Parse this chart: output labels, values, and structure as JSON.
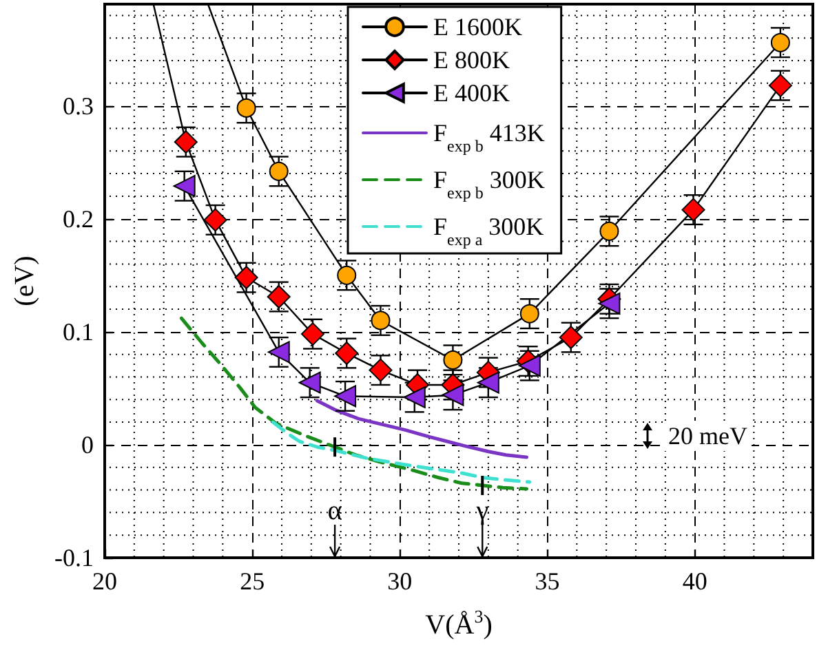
{
  "chart_data": {
    "type": "line",
    "xlabel": "V(Å$^{3}$)",
    "ylabel": "(eV)",
    "xlim": [
      20,
      44
    ],
    "ylim": [
      -0.1,
      0.39
    ],
    "xticks": [
      20,
      25,
      30,
      35,
      40
    ],
    "yticks": [
      -0.1,
      0,
      0.1,
      0.2,
      0.3
    ],
    "grid": true,
    "legend": "top",
    "series": [
      {
        "name": "E 1600K",
        "color": "#ffa500",
        "marker": "circle",
        "line_style": "solid",
        "x": [
          24.8,
          25.9,
          28.2,
          29.35,
          31.8,
          34.4,
          37.1,
          42.9
        ],
        "values": [
          0.298,
          0.242,
          0.15,
          0.11,
          0.075,
          0.116,
          0.189,
          0.356
        ],
        "errors": [
          0.013,
          0.013,
          0.013,
          0.013,
          0.013,
          0.013,
          0.013,
          0.013
        ]
      },
      {
        "name": "E 800K",
        "color": "#ff0000",
        "marker": "diamond",
        "line_style": "solid",
        "x": [
          22.75,
          23.75,
          24.8,
          25.9,
          27.05,
          28.2,
          29.35,
          30.6,
          31.8,
          33.0,
          34.35,
          35.8,
          37.1,
          39.95,
          42.9
        ],
        "values": [
          0.268,
          0.199,
          0.148,
          0.131,
          0.098,
          0.081,
          0.066,
          0.053,
          0.053,
          0.064,
          0.074,
          0.095,
          0.129,
          0.208,
          0.318
        ],
        "errors": [
          0.013,
          0.013,
          0.013,
          0.013,
          0.013,
          0.013,
          0.013,
          0.013,
          0.013,
          0.013,
          0.013,
          0.013,
          0.013,
          0.013,
          0.013
        ]
      },
      {
        "name": "E 400K",
        "color": "#8a2be2",
        "marker": "triangle",
        "line_style": "solid",
        "x": [
          22.7,
          25.9,
          26.95,
          28.15,
          30.5,
          31.8,
          33.0,
          34.4,
          37.1
        ],
        "values": [
          0.229,
          0.082,
          0.055,
          0.043,
          0.042,
          0.044,
          0.055,
          0.07,
          0.125
        ],
        "errors": [
          0.013,
          0.013,
          0.013,
          0.013,
          0.013,
          0.013,
          0.013,
          0.013,
          0.013
        ]
      },
      {
        "name": "F$_{exp b}$ 413K",
        "color": "#7b35c4",
        "marker": "none",
        "line_style": "solid",
        "x": [
          27.2,
          27.8,
          28.6,
          29.4,
          30.2,
          31.0,
          31.6,
          32.2,
          33.0,
          33.6,
          34.3
        ],
        "values": [
          0.039,
          0.031,
          0.023,
          0.018,
          0.013,
          0.007,
          0.003,
          -0.001,
          -0.006,
          -0.009,
          -0.011
        ]
      },
      {
        "name": "F$_{exp b}$ 300K",
        "color": "#1a8c1a",
        "marker": "none",
        "line_style": "dashed",
        "x": [
          22.6,
          23.3,
          24.0,
          24.6,
          25.1,
          25.8,
          26.8,
          27.8,
          28.5,
          29.3,
          30.5,
          31.3,
          32.1,
          32.8,
          33.5,
          34.3
        ],
        "values": [
          0.112,
          0.09,
          0.069,
          0.05,
          0.033,
          0.019,
          0.008,
          -0.002,
          -0.009,
          -0.015,
          -0.023,
          -0.029,
          -0.034,
          -0.036,
          -0.038,
          -0.039
        ]
      },
      {
        "name": "F$_{exp a}$ 300K",
        "color": "#40e0d0",
        "marker": "none",
        "line_style": "dashed",
        "x": [
          25.7,
          26.2,
          26.6,
          27.2,
          27.8,
          28.9,
          30.5,
          31.3,
          32.1,
          32.8,
          33.5,
          34.4
        ],
        "values": [
          0.02,
          0.01,
          0.003,
          -0.002,
          -0.005,
          -0.012,
          -0.019,
          -0.022,
          -0.025,
          -0.029,
          -0.031,
          -0.033
        ]
      },
      {
        "color": "#000000",
        "marker": "none",
        "line_style": "solid",
        "x": [
          23.5,
          24.8
        ],
        "values": [
          0.39,
          0.298
        ]
      },
      {
        "color": "#000000",
        "marker": "none",
        "line_style": "solid",
        "x": [
          21.65,
          22.75
        ],
        "values": [
          0.39,
          0.268
        ]
      }
    ],
    "annotations": [
      {
        "text": "α",
        "x": 27.8,
        "y": -0.002
      },
      {
        "text": "γ",
        "x": 32.8,
        "y": -0.036
      },
      "20 meV"
    ]
  }
}
